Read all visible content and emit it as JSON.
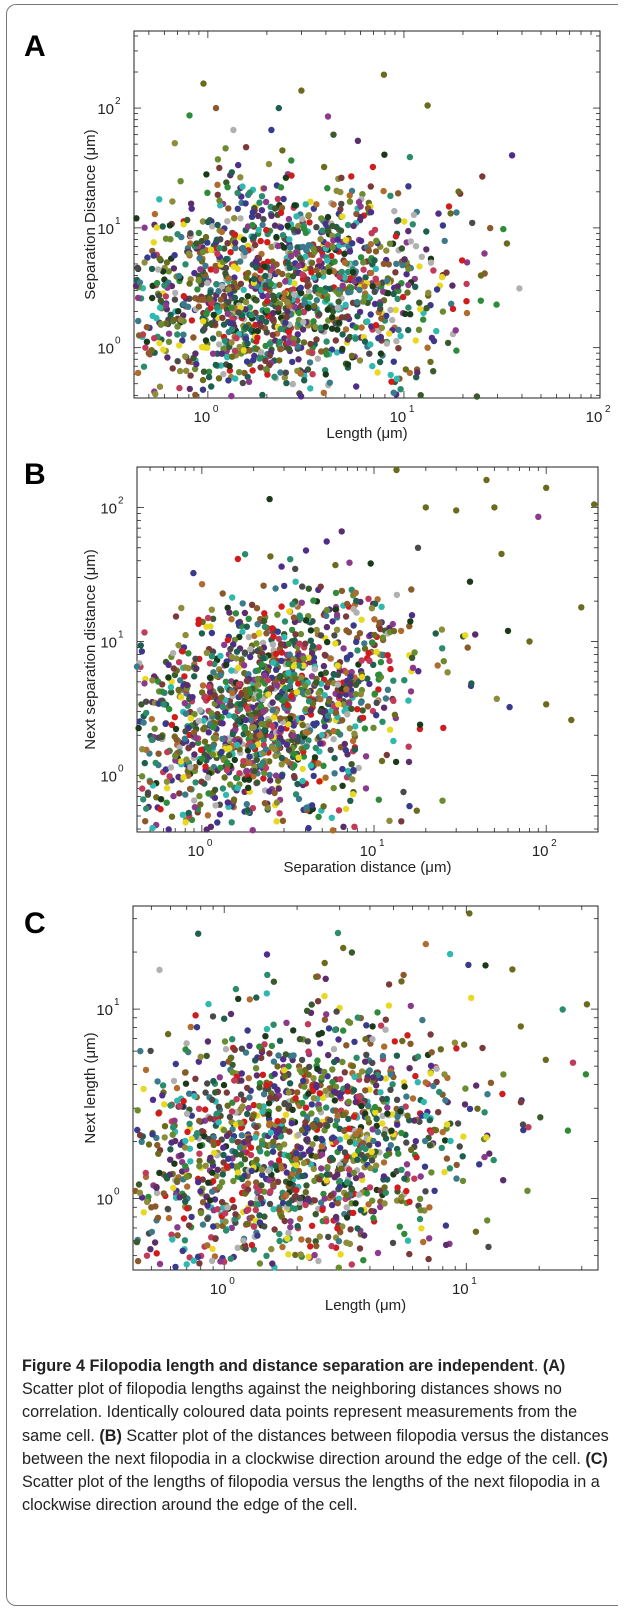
{
  "colors": {
    "palette": [
      "#3a3a8c",
      "#2e8b3a",
      "#8b5a2b",
      "#6b6b1e",
      "#1f5f4f",
      "#8b3a8b",
      "#3a7a8b",
      "#c23a5a",
      "#1a3a1a",
      "#6a8b2e",
      "#5a2e6b",
      "#2eb8b0",
      "#b06b2e",
      "#4a4a4a",
      "#8c8c3a",
      "#3a5a2e",
      "#d01c1c",
      "#e8d820",
      "#b0b0b0",
      "#2a8c6b",
      "#7a3a3a",
      "#4f2e8b"
    ],
    "frame": "#777777"
  },
  "panels": {
    "a": "A",
    "b": "B",
    "c": "C"
  },
  "chart_data": [
    {
      "id": "A",
      "type": "scatter",
      "xlabel": "Length (μm)",
      "ylabel": "Separation Distance (μm)",
      "xscale": "log",
      "yscale": "log",
      "xlim": [
        0.42,
        100
      ],
      "ylim": [
        0.38,
        440
      ],
      "xticks": [
        1,
        10,
        100
      ],
      "yticks": [
        1,
        10,
        100
      ],
      "grid": false,
      "note": "about 1500 points, one colour per cell",
      "points": [
        [
          1.3,
          1.6,
          0
        ],
        [
          2.1,
          3.4,
          1
        ],
        [
          0.9,
          2.2,
          2
        ],
        [
          3.4,
          5.1,
          3
        ],
        [
          1.7,
          8.2,
          4
        ],
        [
          2.6,
          1.1,
          5
        ],
        [
          5.2,
          2.9,
          6
        ],
        [
          1.1,
          4.4,
          7
        ],
        [
          4.1,
          12.3,
          8
        ],
        [
          0.7,
          1.5,
          9
        ],
        [
          2.9,
          0.8,
          10
        ],
        [
          1.5,
          22.1,
          11
        ],
        [
          6.8,
          4.2,
          12
        ],
        [
          3.7,
          1.9,
          13
        ],
        [
          0.8,
          6.1,
          14
        ],
        [
          2.2,
          14.5,
          15
        ],
        [
          9.1,
          8.5,
          16
        ],
        [
          12.1,
          2.1,
          17
        ],
        [
          1.2,
          0.6,
          18
        ],
        [
          0.6,
          3.3,
          19
        ],
        [
          4.8,
          26.2,
          20
        ],
        [
          1.9,
          2.7,
          21
        ],
        [
          7.4,
          1.2,
          0
        ],
        [
          3.1,
          9.8,
          1
        ],
        [
          0.5,
          0.9,
          2
        ],
        [
          2.4,
          44.3,
          3
        ],
        [
          1.0,
          11.2,
          4
        ],
        [
          5.9,
          16.4,
          5
        ],
        [
          8.2,
          3.6,
          6
        ],
        [
          1.4,
          1.2,
          7
        ],
        [
          0.95,
          160,
          3
        ],
        [
          3.0,
          140,
          3
        ],
        [
          13.2,
          105,
          3
        ],
        [
          7.9,
          190,
          3
        ],
        [
          33.5,
          7.4,
          3
        ],
        [
          19.0,
          20.1,
          3
        ],
        [
          17.3,
          13.2,
          3
        ],
        [
          1.1,
          100,
          2
        ],
        [
          2.3,
          100,
          4
        ],
        [
          4.1,
          85,
          5
        ],
        [
          0.45,
          3.5,
          6
        ],
        [
          0.48,
          1.0,
          7
        ],
        [
          0.52,
          2.6,
          8
        ],
        [
          15.8,
          2.0,
          9
        ],
        [
          11.7,
          0.62,
          10
        ],
        [
          9.2,
          0.55,
          11
        ],
        [
          3.9,
          0.42,
          12
        ],
        [
          22.3,
          11.0,
          13
        ]
      ]
    },
    {
      "id": "B",
      "type": "scatter",
      "xlabel": "Separation distance (μm)",
      "ylabel": "Next separation distance (μm)",
      "xscale": "log",
      "yscale": "log",
      "xlim": [
        0.42,
        200
      ],
      "ylim": [
        0.38,
        200
      ],
      "xticks": [
        1,
        10,
        100
      ],
      "yticks": [
        1,
        10,
        100
      ],
      "grid": false,
      "note": "about 1500 points, one colour per cell",
      "points": [
        [
          1.3,
          1.5,
          0
        ],
        [
          2.2,
          3.3,
          1
        ],
        [
          0.9,
          2.1,
          2
        ],
        [
          3.5,
          5.3,
          3
        ],
        [
          1.6,
          8.4,
          4
        ],
        [
          2.7,
          1.0,
          5
        ],
        [
          5.4,
          2.8,
          6
        ],
        [
          1.1,
          4.6,
          7
        ],
        [
          4.3,
          12.1,
          8
        ],
        [
          0.7,
          1.4,
          9
        ],
        [
          2.8,
          0.8,
          10
        ],
        [
          1.5,
          21.3,
          11
        ],
        [
          6.9,
          4.4,
          12
        ],
        [
          3.6,
          1.8,
          13
        ],
        [
          0.8,
          6.4,
          14
        ],
        [
          2.3,
          14.2,
          15
        ],
        [
          9.3,
          8.2,
          16
        ],
        [
          12.4,
          2.2,
          17
        ],
        [
          1.2,
          0.6,
          18
        ],
        [
          0.6,
          3.4,
          19
        ],
        [
          4.9,
          25.6,
          20
        ],
        [
          1.8,
          2.6,
          21
        ],
        [
          7.6,
          1.1,
          0
        ],
        [
          3.2,
          9.6,
          1
        ],
        [
          0.5,
          0.9,
          2
        ],
        [
          2.5,
          43.1,
          3
        ],
        [
          1.0,
          11.5,
          4
        ],
        [
          6.1,
          15.8,
          5
        ],
        [
          8.4,
          3.5,
          6
        ],
        [
          1.4,
          1.1,
          7
        ],
        [
          13.5,
          190,
          3
        ],
        [
          45.0,
          160,
          3
        ],
        [
          100,
          140,
          3
        ],
        [
          190,
          105,
          3
        ],
        [
          160,
          18,
          3
        ],
        [
          140,
          2.6,
          3
        ],
        [
          100,
          3.4,
          3
        ],
        [
          80,
          10,
          3
        ],
        [
          50,
          100,
          3
        ],
        [
          20,
          100,
          3
        ],
        [
          30,
          95,
          3
        ],
        [
          55,
          45,
          3
        ],
        [
          18,
          50,
          13
        ],
        [
          90,
          85,
          5
        ],
        [
          60,
          12,
          8
        ],
        [
          35,
          9,
          2
        ],
        [
          0.42,
          6.5,
          6
        ],
        [
          0.45,
          0.8,
          7
        ],
        [
          25,
          0.65,
          9
        ]
      ]
    },
    {
      "id": "C",
      "type": "scatter",
      "xlabel": "Length (μm)",
      "ylabel": "Next length (μm)",
      "xscale": "log",
      "yscale": "log",
      "xlim": [
        0.42,
        35
      ],
      "ylim": [
        0.42,
        35
      ],
      "xticks": [
        1,
        10
      ],
      "yticks": [
        1,
        10
      ],
      "grid": false,
      "note": "about 1500 points, one colour per cell",
      "points": [
        [
          1.3,
          1.4,
          0
        ],
        [
          2.1,
          3.2,
          1
        ],
        [
          0.9,
          2.0,
          2
        ],
        [
          3.4,
          5.0,
          3
        ],
        [
          1.7,
          6.8,
          4
        ],
        [
          2.6,
          1.0,
          5
        ],
        [
          5.2,
          2.7,
          6
        ],
        [
          1.1,
          4.2,
          7
        ],
        [
          4.1,
          8.1,
          8
        ],
        [
          0.7,
          1.3,
          9
        ],
        [
          2.9,
          0.8,
          10
        ],
        [
          1.5,
          12.1,
          11
        ],
        [
          6.8,
          4.1,
          12
        ],
        [
          3.7,
          1.7,
          13
        ],
        [
          0.8,
          5.6,
          14
        ],
        [
          2.2,
          9.8,
          15
        ],
        [
          9.1,
          6.2,
          16
        ],
        [
          12.1,
          2.1,
          17
        ],
        [
          1.2,
          0.6,
          18
        ],
        [
          0.6,
          3.1,
          19
        ],
        [
          4.8,
          13.5,
          20
        ],
        [
          1.9,
          2.5,
          21
        ],
        [
          7.4,
          1.1,
          0
        ],
        [
          3.1,
          7.7,
          1
        ],
        [
          0.5,
          0.9,
          2
        ],
        [
          2.4,
          14.8,
          3
        ],
        [
          1.0,
          8.9,
          4
        ],
        [
          5.9,
          10.4,
          5
        ],
        [
          8.2,
          3.3,
          6
        ],
        [
          1.4,
          1.1,
          7
        ],
        [
          10.3,
          32,
          3
        ],
        [
          3.1,
          21,
          3
        ],
        [
          2.6,
          17.5,
          3
        ],
        [
          31.5,
          10.6,
          3
        ],
        [
          21.3,
          5.4,
          3
        ],
        [
          15.5,
          16.2,
          3
        ],
        [
          16.8,
          8.1,
          3
        ],
        [
          9.8,
          6.5,
          3
        ],
        [
          5.4,
          14,
          3
        ],
        [
          12,
          17,
          8
        ],
        [
          10.2,
          17.1,
          0
        ],
        [
          17.2,
          2.3,
          0
        ],
        [
          0.45,
          6.0,
          6
        ],
        [
          0.48,
          0.5,
          7
        ],
        [
          17.9,
          1.1,
          9
        ],
        [
          14.2,
          1.25,
          10
        ],
        [
          0.7,
          0.45,
          11
        ]
      ]
    }
  ],
  "caption": {
    "figure_label": "Figure 4",
    "title": "Filopodia length and distance separation are",
    "title_end": "independent",
    "period": ".",
    "a_label": "(A)",
    "a_text": "Scatter plot of filopodia lengths against the neighboring distances shows no correlation. Identically coloured data points represent measurements from the same cell.",
    "b_label": "(B)",
    "b_text": "Scatter plot of the distances between filopodia versus the distances between the next filopodia in a clockwise direction around the edge of the cell.",
    "c_label": "(C)",
    "c_text": "Scatter plot of the lengths of filopodia versus the lengths of the next filopodia in a clockwise direction around the edge of the cell."
  }
}
